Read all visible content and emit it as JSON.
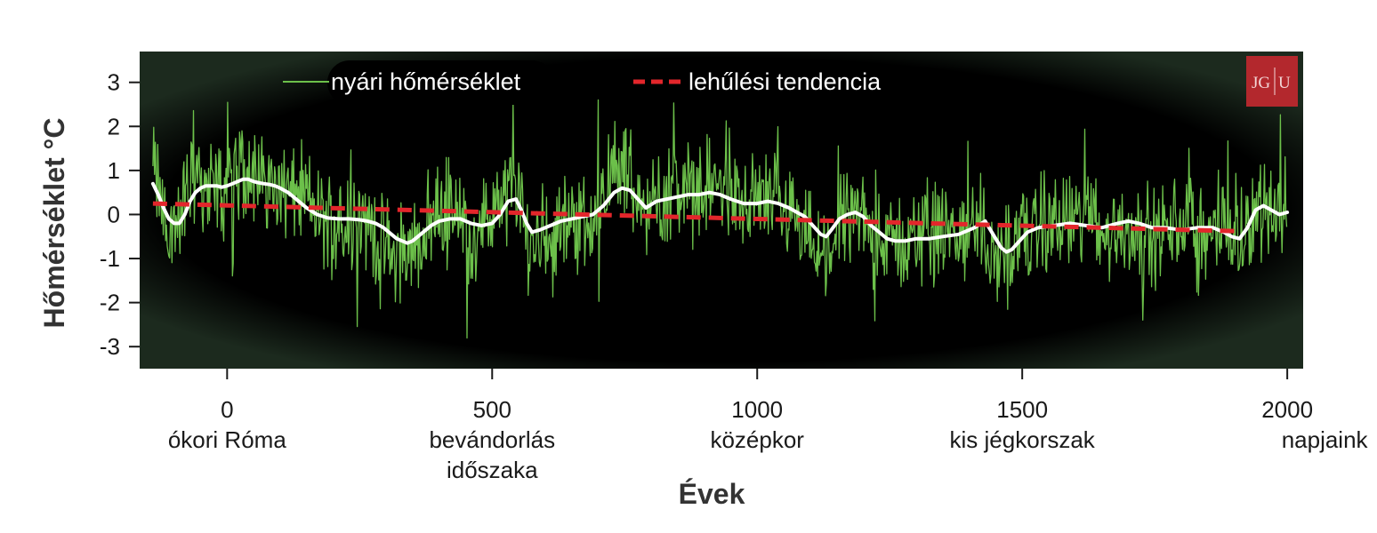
{
  "chart_data": {
    "type": "line",
    "title": "",
    "xlabel": "Évek",
    "ylabel": "Hőmérséklet °C",
    "xlim": [
      -165,
      2030
    ],
    "ylim": [
      -3.5,
      3.7
    ],
    "x_ticks": [
      0,
      500,
      1000,
      1500,
      2000
    ],
    "y_ticks": [
      3,
      2,
      1,
      0,
      -1,
      -2,
      -3
    ],
    "era_labels": [
      {
        "x": 0,
        "lines": [
          "ókori Róma"
        ]
      },
      {
        "x": 500,
        "lines": [
          "bevándorlás",
          "időszaka"
        ]
      },
      {
        "x": 1000,
        "lines": [
          "középkor"
        ]
      },
      {
        "x": 1500,
        "lines": [
          "kis jégkorszak"
        ]
      },
      {
        "x": 2000,
        "lines": [
          "napjaink"
        ]
      }
    ],
    "legend": {
      "position": "top-left",
      "entries": [
        {
          "label": "nyári hőmérséklet",
          "color": "#6cc04a",
          "style": "solid"
        },
        {
          "label": "lehűlési tendencia",
          "color": "#e3262b",
          "style": "dashed"
        }
      ]
    },
    "grid": false,
    "series": [
      {
        "name": "nyári hőmérséklet",
        "style": "annual-noisy",
        "color": "#6cc04a",
        "x": [
          -140,
          -125,
          -110,
          -95,
          -80,
          -60,
          -40,
          -20,
          0,
          25,
          40,
          60,
          80,
          100,
          120,
          140,
          165,
          190,
          220,
          250,
          280,
          310,
          330,
          350,
          370,
          390,
          410,
          440,
          470,
          490,
          510,
          530,
          545,
          560,
          575,
          590,
          620,
          650,
          680,
          700,
          720,
          740,
          760,
          785,
          810,
          830,
          860,
          890,
          920,
          950,
          980,
          1000,
          1030,
          1060,
          1090,
          1110,
          1130,
          1150,
          1175,
          1190,
          1210,
          1240,
          1280,
          1330,
          1380,
          1420,
          1440,
          1460,
          1480,
          1500,
          1540,
          1580,
          1600,
          1630,
          1660,
          1700,
          1740,
          1780,
          1820,
          1850,
          1880,
          1900,
          1920,
          1940,
          1960,
          1980,
          2000
        ],
        "values": [
          1.1,
          0.3,
          -0.6,
          -0.2,
          0.4,
          0.9,
          0.7,
          0.6,
          0.7,
          0.9,
          1.0,
          0.7,
          0.8,
          0.6,
          0.4,
          0.5,
          0.1,
          -0.2,
          0.0,
          -0.1,
          -0.4,
          -0.9,
          -1.0,
          -0.8,
          -0.4,
          0.0,
          0.1,
          -0.2,
          -0.4,
          -0.2,
          0.1,
          0.5,
          0.7,
          -0.3,
          -0.7,
          -0.5,
          -0.3,
          -0.1,
          -0.3,
          0.3,
          0.9,
          1.0,
          0.8,
          0.2,
          0.2,
          0.5,
          0.6,
          0.6,
          0.7,
          0.4,
          0.1,
          0.4,
          0.3,
          0.2,
          -0.4,
          -0.8,
          -0.9,
          -0.3,
          0.1,
          -0.1,
          -0.4,
          -0.7,
          -0.6,
          -0.4,
          -0.5,
          -0.2,
          -0.8,
          -1.1,
          -0.9,
          -0.4,
          -0.2,
          -0.3,
          -0.1,
          -0.2,
          -0.4,
          -0.3,
          -0.5,
          -0.4,
          -0.3,
          -0.4,
          -0.2,
          -0.6,
          -0.4,
          0.1,
          0.3,
          0.1,
          0.2
        ]
      },
      {
        "name": "",
        "style": "smoothed",
        "color": "#ffffff",
        "x": [
          -140,
          -130,
          -120,
          -110,
          -100,
          -90,
          -80,
          -70,
          -60,
          -50,
          -40,
          -30,
          -20,
          -10,
          0,
          10,
          20,
          30,
          40,
          50,
          60,
          70,
          80,
          90,
          100,
          115,
          130,
          150,
          170,
          190,
          210,
          230,
          250,
          265,
          280,
          295,
          310,
          320,
          330,
          340,
          350,
          360,
          370,
          385,
          400,
          420,
          440,
          460,
          480,
          500,
          515,
          530,
          545,
          555,
          565,
          575,
          590,
          610,
          630,
          650,
          670,
          690,
          710,
          730,
          745,
          760,
          775,
          790,
          810,
          830,
          850,
          870,
          890,
          910,
          930,
          950,
          975,
          1000,
          1020,
          1040,
          1060,
          1075,
          1090,
          1105,
          1120,
          1130,
          1140,
          1155,
          1170,
          1185,
          1200,
          1215,
          1230,
          1245,
          1260,
          1280,
          1300,
          1325,
          1350,
          1380,
          1410,
          1430,
          1445,
          1460,
          1470,
          1480,
          1495,
          1510,
          1530,
          1560,
          1590,
          1620,
          1650,
          1680,
          1700,
          1720,
          1745,
          1770,
          1800,
          1830,
          1860,
          1880,
          1895,
          1910,
          1925,
          1940,
          1955,
          1970,
          1985,
          2000
        ],
        "values": [
          0.7,
          0.45,
          0.15,
          -0.1,
          -0.2,
          -0.2,
          0.0,
          0.3,
          0.5,
          0.6,
          0.65,
          0.65,
          0.65,
          0.62,
          0.65,
          0.7,
          0.75,
          0.8,
          0.8,
          0.75,
          0.72,
          0.7,
          0.68,
          0.65,
          0.6,
          0.5,
          0.35,
          0.15,
          0.0,
          -0.08,
          -0.1,
          -0.1,
          -0.12,
          -0.15,
          -0.2,
          -0.3,
          -0.45,
          -0.55,
          -0.6,
          -0.65,
          -0.6,
          -0.5,
          -0.4,
          -0.25,
          -0.15,
          -0.1,
          -0.1,
          -0.2,
          -0.25,
          -0.2,
          0.0,
          0.3,
          0.35,
          0.1,
          -0.2,
          -0.4,
          -0.35,
          -0.25,
          -0.15,
          -0.1,
          -0.05,
          0.0,
          0.2,
          0.5,
          0.6,
          0.55,
          0.35,
          0.15,
          0.3,
          0.35,
          0.4,
          0.45,
          0.45,
          0.5,
          0.45,
          0.35,
          0.25,
          0.25,
          0.3,
          0.25,
          0.15,
          0.05,
          -0.05,
          -0.25,
          -0.45,
          -0.5,
          -0.35,
          -0.1,
          0.0,
          0.05,
          -0.05,
          -0.25,
          -0.4,
          -0.55,
          -0.6,
          -0.6,
          -0.55,
          -0.55,
          -0.5,
          -0.45,
          -0.3,
          -0.15,
          -0.45,
          -0.75,
          -0.85,
          -0.8,
          -0.6,
          -0.4,
          -0.3,
          -0.25,
          -0.2,
          -0.25,
          -0.3,
          -0.2,
          -0.15,
          -0.2,
          -0.3,
          -0.3,
          -0.35,
          -0.3,
          -0.3,
          -0.4,
          -0.5,
          -0.55,
          -0.3,
          0.1,
          0.2,
          0.1,
          0.0,
          0.05
        ]
      },
      {
        "name": "lehűlési tendencia",
        "style": "dashed",
        "color": "#e3262b",
        "x": [
          -140,
          1910
        ],
        "values": [
          0.25,
          -0.38
        ]
      }
    ]
  },
  "logo": {
    "text_left": "JG",
    "text_right": "U",
    "color": "#b3282d"
  }
}
